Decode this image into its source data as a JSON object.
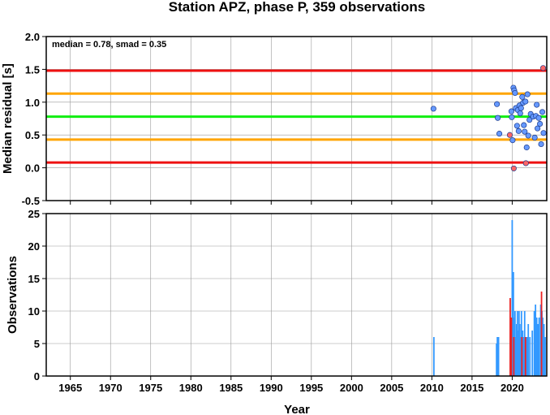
{
  "chart_data": [
    {
      "type": "scatter",
      "title": "Station APZ, phase P, 359 observations",
      "xlabel": "",
      "ylabel": "Median residual [s]",
      "annotation": "median = 0.78, smad = 0.35",
      "xlim": [
        1962,
        2024.3
      ],
      "ylim": [
        -0.5,
        2.0
      ],
      "yticks": [
        "-0.5",
        "0.0",
        "0.5",
        "1.0",
        "1.5",
        "2.0"
      ],
      "grid": true,
      "reference_lines": [
        {
          "y": 1.48,
          "color": "#ee1111"
        },
        {
          "y": 1.13,
          "color": "#ffa500"
        },
        {
          "y": 0.78,
          "color": "#11ee11"
        },
        {
          "y": 0.43,
          "color": "#ffa500"
        },
        {
          "y": 0.08,
          "color": "#ee1111"
        }
      ],
      "series": [
        {
          "color": "#6699ff",
          "points": [
            [
              2010.2,
              0.9
            ],
            [
              2018.1,
              0.97
            ],
            [
              2018.2,
              0.76
            ],
            [
              2018.4,
              0.52
            ],
            [
              2019.9,
              0.86
            ],
            [
              2019.95,
              0.77
            ],
            [
              2020.05,
              0.42
            ],
            [
              2020.15,
              1.22
            ],
            [
              2020.25,
              1.18
            ],
            [
              2020.35,
              1.14
            ],
            [
              2020.45,
              0.91
            ],
            [
              2020.6,
              0.64
            ],
            [
              2020.7,
              0.88
            ],
            [
              2020.8,
              0.56
            ],
            [
              2020.9,
              0.95
            ],
            [
              2021.0,
              0.83
            ],
            [
              2021.1,
              0.91
            ],
            [
              2021.25,
              1.08
            ],
            [
              2021.35,
              0.99
            ],
            [
              2021.45,
              0.65
            ],
            [
              2021.55,
              0.55
            ],
            [
              2021.65,
              1.01
            ],
            [
              2021.8,
              0.31
            ],
            [
              2021.9,
              1.12
            ],
            [
              2022.0,
              0.49
            ],
            [
              2022.15,
              0.73
            ],
            [
              2022.3,
              0.82
            ],
            [
              2022.6,
              0.78
            ],
            [
              2022.8,
              0.46
            ],
            [
              2022.95,
              0.79
            ],
            [
              2023.05,
              0.96
            ],
            [
              2023.15,
              0.6
            ],
            [
              2023.3,
              0.76
            ],
            [
              2023.45,
              0.67
            ],
            [
              2023.6,
              0.36
            ],
            [
              2023.75,
              0.85
            ],
            [
              2023.9,
              0.53
            ]
          ]
        },
        {
          "color": "#ff6666",
          "points": [
            [
              2019.7,
              0.5
            ],
            [
              2020.2,
              -0.01
            ],
            [
              2021.7,
              0.07
            ],
            [
              2023.85,
              1.52
            ]
          ]
        }
      ]
    },
    {
      "type": "bar",
      "xlabel": "Year",
      "ylabel": "Observations",
      "xlim": [
        1962,
        2024.3
      ],
      "ylim": [
        0,
        25
      ],
      "xticks": [
        "1965",
        "1970",
        "1975",
        "1980",
        "1985",
        "1990",
        "1995",
        "2000",
        "2005",
        "2010",
        "2015",
        "2020"
      ],
      "yticks": [
        "0",
        "5",
        "10",
        "15",
        "20",
        "25"
      ],
      "grid": true,
      "series": [
        {
          "color": "#3399ff",
          "points": [
            [
              2010.25,
              6
            ],
            [
              2018.05,
              5
            ],
            [
              2018.15,
              6
            ],
            [
              2018.3,
              6
            ],
            [
              2019.85,
              8
            ],
            [
              2020.0,
              24
            ],
            [
              2020.08,
              14
            ],
            [
              2020.15,
              16
            ],
            [
              2020.25,
              9
            ],
            [
              2020.35,
              10
            ],
            [
              2020.45,
              6
            ],
            [
              2020.55,
              8
            ],
            [
              2020.65,
              10
            ],
            [
              2020.75,
              7
            ],
            [
              2020.85,
              10
            ],
            [
              2020.95,
              8
            ],
            [
              2021.05,
              6
            ],
            [
              2021.15,
              10
            ],
            [
              2021.3,
              7
            ],
            [
              2021.4,
              6
            ],
            [
              2021.55,
              10
            ],
            [
              2021.7,
              6
            ],
            [
              2021.85,
              6
            ],
            [
              2022.0,
              8
            ],
            [
              2022.2,
              6
            ],
            [
              2022.5,
              7
            ],
            [
              2022.75,
              10
            ],
            [
              2022.9,
              11
            ],
            [
              2023.05,
              9
            ],
            [
              2023.2,
              8
            ],
            [
              2023.35,
              9
            ],
            [
              2023.55,
              11
            ],
            [
              2023.7,
              10
            ],
            [
              2023.8,
              9
            ],
            [
              2023.95,
              8
            ],
            [
              2024.1,
              6
            ]
          ]
        },
        {
          "color": "#ee2222",
          "points": [
            [
              2019.75,
              12
            ],
            [
              2019.9,
              9
            ],
            [
              2020.2,
              6
            ],
            [
              2021.2,
              6
            ],
            [
              2021.65,
              6
            ],
            [
              2023.65,
              13
            ]
          ]
        }
      ]
    }
  ]
}
